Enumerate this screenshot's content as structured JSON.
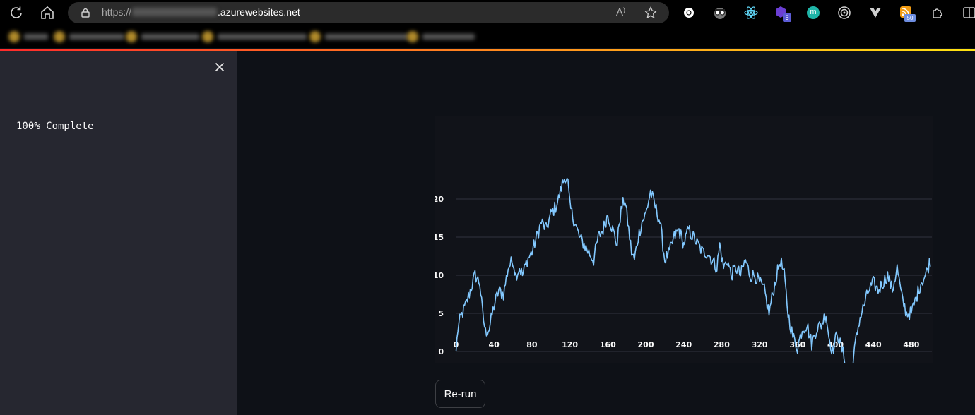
{
  "browser": {
    "url_scheme": "https://",
    "url_domain": ".azurewebsites.net",
    "read_aloud_label": "A",
    "extension_badge_1": "5",
    "extension_badge_2": "50",
    "extension_m_label": "m"
  },
  "sidebar": {
    "status_text": "100% Complete",
    "close_label": "×"
  },
  "main": {
    "rerun_label": "Re-run"
  },
  "colors": {
    "line": "#83c9ff",
    "grid": "#31333f",
    "accent_start": "#ff2b2b",
    "accent_end": "#ffe312"
  },
  "chart_data": {
    "type": "line",
    "x_start": 0,
    "x_step": 1,
    "xticks": [
      "0",
      "40",
      "80",
      "120",
      "160",
      "200",
      "240",
      "280",
      "320",
      "360",
      "400",
      "440",
      "480"
    ],
    "yticks": [
      "0",
      "5",
      "10",
      "15",
      "20"
    ],
    "xlim": [
      0,
      500
    ],
    "ylim": [
      -4,
      24
    ],
    "grid": "horizontal",
    "anchors": [
      [
        0,
        0
      ],
      [
        2,
        3
      ],
      [
        5,
        4.5
      ],
      [
        10,
        6
      ],
      [
        15,
        8
      ],
      [
        20,
        10
      ],
      [
        25,
        9
      ],
      [
        28,
        5
      ],
      [
        31,
        2.5
      ],
      [
        35,
        3
      ],
      [
        40,
        6
      ],
      [
        45,
        8
      ],
      [
        50,
        7.5
      ],
      [
        55,
        11
      ],
      [
        60,
        12
      ],
      [
        63,
        10
      ],
      [
        67,
        11
      ],
      [
        70,
        10
      ],
      [
        75,
        12
      ],
      [
        80,
        13
      ],
      [
        85,
        15
      ],
      [
        90,
        17
      ],
      [
        95,
        16
      ],
      [
        100,
        18
      ],
      [
        105,
        19
      ],
      [
        108,
        20
      ],
      [
        112,
        22
      ],
      [
        115,
        23
      ],
      [
        118,
        22
      ],
      [
        120,
        19
      ],
      [
        125,
        17
      ],
      [
        130,
        15
      ],
      [
        135,
        14
      ],
      [
        140,
        13
      ],
      [
        145,
        12
      ],
      [
        150,
        15
      ],
      [
        155,
        16
      ],
      [
        160,
        18
      ],
      [
        165,
        16
      ],
      [
        170,
        14
      ],
      [
        172,
        17
      ],
      [
        175,
        19
      ],
      [
        178,
        20
      ],
      [
        182,
        16
      ],
      [
        185,
        13
      ],
      [
        188,
        12
      ],
      [
        192,
        15
      ],
      [
        196,
        17
      ],
      [
        200,
        18
      ],
      [
        205,
        21
      ],
      [
        210,
        19
      ],
      [
        215,
        17
      ],
      [
        220,
        12
      ],
      [
        225,
        13
      ],
      [
        230,
        15
      ],
      [
        235,
        16
      ],
      [
        240,
        14
      ],
      [
        245,
        16
      ],
      [
        250,
        15
      ],
      [
        255,
        14
      ],
      [
        260,
        13
      ],
      [
        265,
        13
      ],
      [
        270,
        12
      ],
      [
        275,
        11
      ],
      [
        278,
        14
      ],
      [
        282,
        11
      ],
      [
        286,
        12
      ],
      [
        290,
        10
      ],
      [
        295,
        11
      ],
      [
        300,
        10
      ],
      [
        305,
        12
      ],
      [
        310,
        10
      ],
      [
        315,
        10
      ],
      [
        320,
        9
      ],
      [
        325,
        8
      ],
      [
        330,
        5
      ],
      [
        333,
        7
      ],
      [
        338,
        10
      ],
      [
        342,
        12
      ],
      [
        346,
        10
      ],
      [
        350,
        5
      ],
      [
        355,
        2
      ],
      [
        360,
        0.5
      ],
      [
        365,
        3
      ],
      [
        370,
        3.5
      ],
      [
        375,
        1
      ],
      [
        380,
        3
      ],
      [
        385,
        3.5
      ],
      [
        390,
        5
      ],
      [
        393,
        2
      ],
      [
        397,
        0
      ],
      [
        402,
        2.5
      ],
      [
        405,
        1
      ],
      [
        410,
        -1
      ],
      [
        414,
        -3
      ],
      [
        418,
        -2
      ],
      [
        421,
        1
      ],
      [
        425,
        4
      ],
      [
        430,
        6
      ],
      [
        435,
        8
      ],
      [
        440,
        9
      ],
      [
        445,
        8
      ],
      [
        450,
        9
      ],
      [
        455,
        10
      ],
      [
        460,
        8
      ],
      [
        465,
        11
      ],
      [
        470,
        7
      ],
      [
        475,
        5
      ],
      [
        480,
        5
      ],
      [
        485,
        7
      ],
      [
        490,
        9
      ],
      [
        495,
        10
      ],
      [
        500,
        12
      ]
    ],
    "noise_amplitude": 0.9
  }
}
